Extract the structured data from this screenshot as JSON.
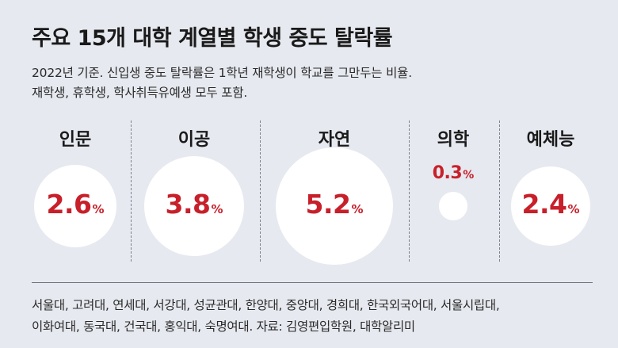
{
  "title": "주요 15개 대학 계열별 학생 중도 탈락률",
  "subtitle_lines": [
    "2022년 기준. 신입생 중도 탈락률은 1학년 재학생이 학교를 그만두는 비율.",
    "재학생, 휴학생, 학사취득유예생 모두 포함."
  ],
  "chart_data": {
    "type": "bubble",
    "categories": [
      "인문",
      "이공",
      "자연",
      "의학",
      "예체능"
    ],
    "values": [
      2.6,
      3.8,
      5.2,
      0.3,
      2.4
    ],
    "unit": "%"
  },
  "footer_lines": [
    "서울대, 고려대, 연세대, 서강대, 성균관대, 한양대, 중앙대, 경희대, 한국외국어대, 서울시립대,",
    "이화여대, 동국대, 건국대, 홍익대, 숙명여대. 자료: 김영편입학원, 대학알리미"
  ],
  "colors": {
    "background": "#e6e9ef",
    "bubble": "#ffffff",
    "value_text": "#c8202a"
  }
}
